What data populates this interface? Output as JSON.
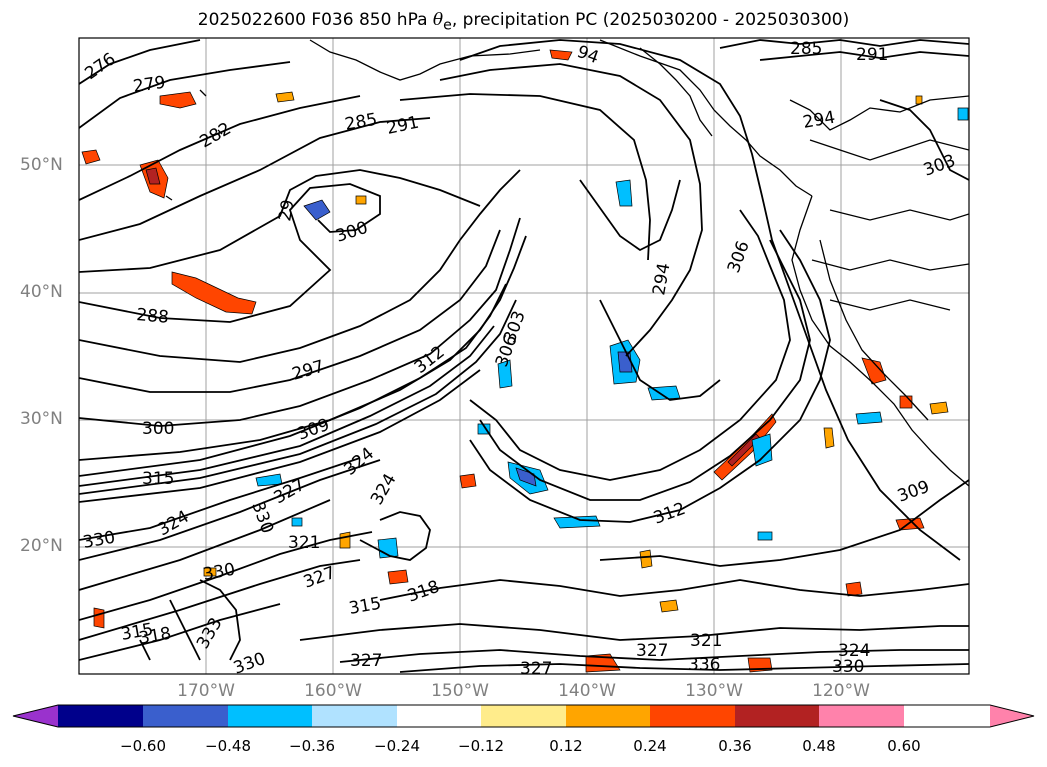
{
  "title": {
    "prefix": "2025022600 F036 850 hPa ",
    "symbol": "θ",
    "subscript": "e",
    "suffix": ", precipitation PC (2025030200 - 2025030300)"
  },
  "axes": {
    "lat_labels": [
      "50°N",
      "40°N",
      "30°N",
      "20°N"
    ],
    "lon_labels": [
      "170°W",
      "160°W",
      "150°W",
      "140°W",
      "130°W",
      "120°W"
    ]
  },
  "contour_labels": [
    "276",
    "279",
    "282",
    "285",
    "288",
    "291",
    "294",
    "297",
    "300",
    "303",
    "306",
    "309",
    "312",
    "315",
    "318",
    "321",
    "324",
    "327",
    "330",
    "333",
    "336"
  ],
  "colorbar": {
    "tick_labels": [
      "−0.60",
      "−0.48",
      "−0.36",
      "−0.24",
      "−0.12",
      "0.12",
      "0.24",
      "0.36",
      "0.48",
      "0.60"
    ],
    "colors": [
      "#9a32cd",
      "#00008b",
      "#3a5fcd",
      "#00bfff",
      "#b0e2ff",
      "#ffffff",
      "#ffec8b",
      "#ffa500",
      "#ff4500",
      "#b22222",
      "#ff82ab"
    ]
  }
}
